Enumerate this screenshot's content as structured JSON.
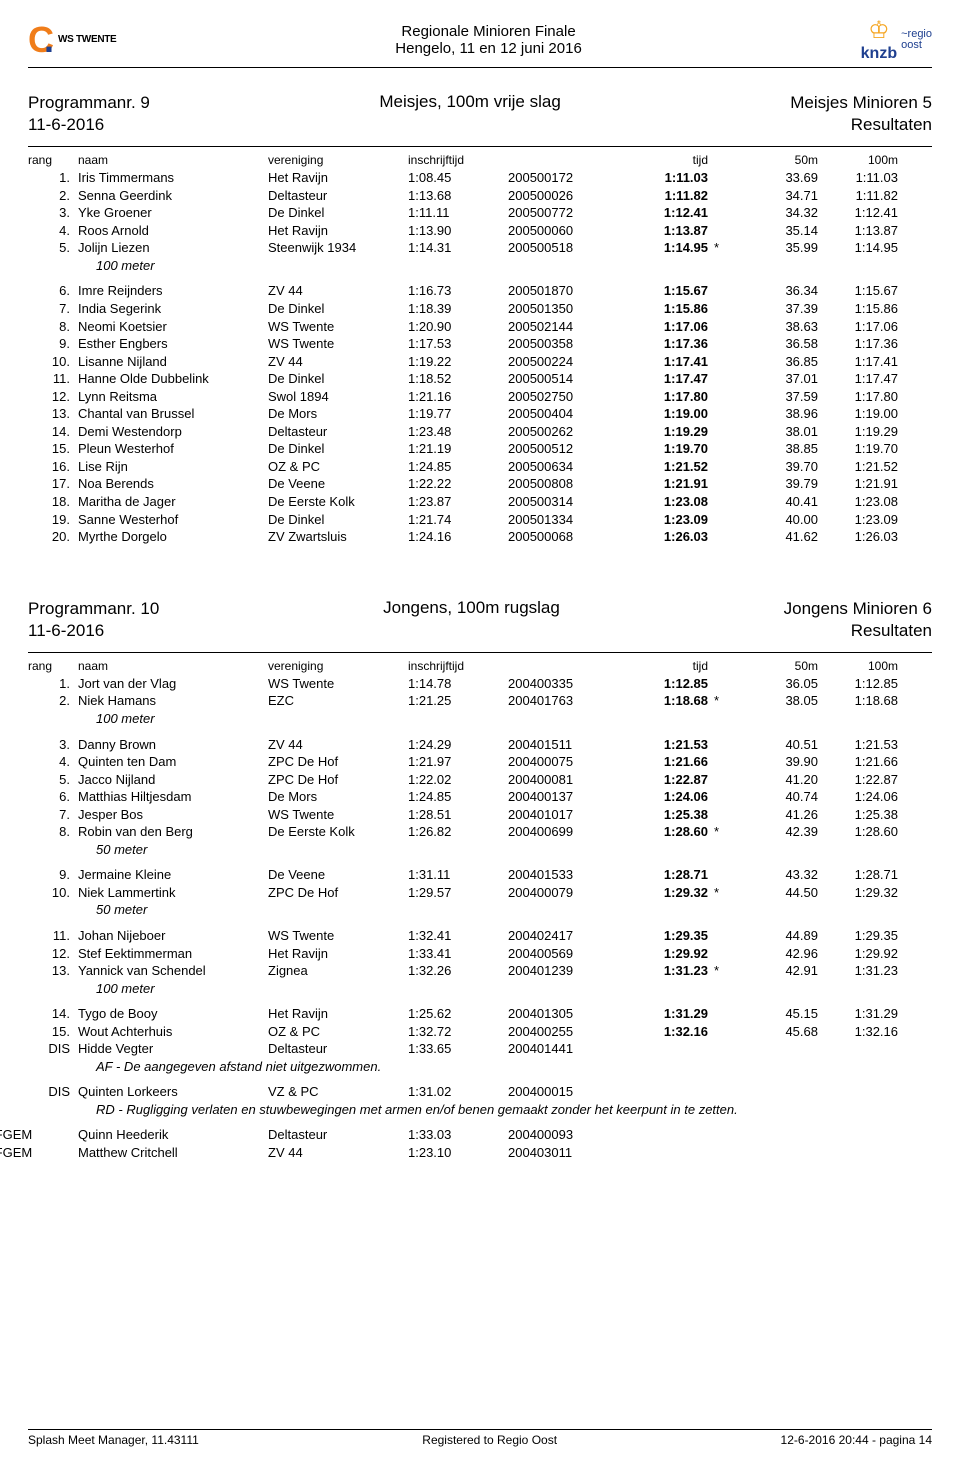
{
  "header": {
    "ws_logo_text": "WS TWENTE",
    "title_line1": "Regionale Minioren Finale",
    "title_line2": "Hengelo, 11 en 12 juni 2016",
    "knzb_text": "knzb",
    "regio_line1": "~regio",
    "regio_line2": "oost",
    "swoosh_color1": "#f07d1a",
    "swoosh_color2": "#1e3f8f",
    "knzb_color": "#1e3f8f",
    "lion_color": "#f5a623"
  },
  "program1": {
    "num_label": "Programmanr. 9",
    "date": "11-6-2016",
    "event": "Meisjes, 100m vrije slag",
    "category": "Meisjes Minioren 5",
    "subtitle": "Resultaten",
    "cols": {
      "rang": "rang",
      "naam": "naam",
      "vereniging": "vereniging",
      "inschrijftijd": "inschrijftijd",
      "id": "",
      "tijd": "tijd",
      "star": "",
      "m50": "50m",
      "m100": "100m"
    },
    "groups": [
      {
        "rows": [
          {
            "r": "1.",
            "n": "Iris Timmermans",
            "v": "Het Ravijn",
            "it": "1:08.45",
            "id": "200500172",
            "t": "1:11.03",
            "s": "",
            "m50": "33.69",
            "m100": "1:11.03"
          },
          {
            "r": "2.",
            "n": "Senna Geerdink",
            "v": "Deltasteur",
            "it": "1:13.68",
            "id": "200500026",
            "t": "1:11.82",
            "s": "",
            "m50": "34.71",
            "m100": "1:11.82"
          },
          {
            "r": "3.",
            "n": "Yke Groener",
            "v": "De Dinkel",
            "it": "1:11.11",
            "id": "200500772",
            "t": "1:12.41",
            "s": "",
            "m50": "34.32",
            "m100": "1:12.41"
          },
          {
            "r": "4.",
            "n": "Roos Arnold",
            "v": "Het Ravijn",
            "it": "1:13.90",
            "id": "200500060",
            "t": "1:13.87",
            "s": "",
            "m50": "35.14",
            "m100": "1:13.87"
          },
          {
            "r": "5.",
            "n": "Jolijn Liezen",
            "v": "Steenwijk 1934",
            "it": "1:14.31",
            "id": "200500518",
            "t": "1:14.95",
            "s": "*",
            "m50": "35.99",
            "m100": "1:14.95"
          }
        ],
        "note": "100 meter"
      },
      {
        "rows": [
          {
            "r": "6.",
            "n": "Imre Reijnders",
            "v": "ZV 44",
            "it": "1:16.73",
            "id": "200501870",
            "t": "1:15.67",
            "s": "",
            "m50": "36.34",
            "m100": "1:15.67"
          },
          {
            "r": "7.",
            "n": "India Segerink",
            "v": "De Dinkel",
            "it": "1:18.39",
            "id": "200501350",
            "t": "1:15.86",
            "s": "",
            "m50": "37.39",
            "m100": "1:15.86"
          },
          {
            "r": "8.",
            "n": "Neomi Koetsier",
            "v": "WS Twente",
            "it": "1:20.90",
            "id": "200502144",
            "t": "1:17.06",
            "s": "",
            "m50": "38.63",
            "m100": "1:17.06"
          },
          {
            "r": "9.",
            "n": "Esther Engbers",
            "v": "WS Twente",
            "it": "1:17.53",
            "id": "200500358",
            "t": "1:17.36",
            "s": "",
            "m50": "36.58",
            "m100": "1:17.36"
          },
          {
            "r": "10.",
            "n": "Lisanne Nijland",
            "v": "ZV 44",
            "it": "1:19.22",
            "id": "200500224",
            "t": "1:17.41",
            "s": "",
            "m50": "36.85",
            "m100": "1:17.41"
          },
          {
            "r": "11.",
            "n": "Hanne Olde Dubbelink",
            "v": "De Dinkel",
            "it": "1:18.52",
            "id": "200500514",
            "t": "1:17.47",
            "s": "",
            "m50": "37.01",
            "m100": "1:17.47"
          },
          {
            "r": "12.",
            "n": "Lynn Reitsma",
            "v": "Swol 1894",
            "it": "1:21.16",
            "id": "200502750",
            "t": "1:17.80",
            "s": "",
            "m50": "37.59",
            "m100": "1:17.80"
          },
          {
            "r": "13.",
            "n": "Chantal van Brussel",
            "v": "De Mors",
            "it": "1:19.77",
            "id": "200500404",
            "t": "1:19.00",
            "s": "",
            "m50": "38.96",
            "m100": "1:19.00"
          },
          {
            "r": "14.",
            "n": "Demi Westendorp",
            "v": "Deltasteur",
            "it": "1:23.48",
            "id": "200500262",
            "t": "1:19.29",
            "s": "",
            "m50": "38.01",
            "m100": "1:19.29"
          },
          {
            "r": "15.",
            "n": "Pleun Westerhof",
            "v": "De Dinkel",
            "it": "1:21.19",
            "id": "200500512",
            "t": "1:19.70",
            "s": "",
            "m50": "38.85",
            "m100": "1:19.70"
          },
          {
            "r": "16.",
            "n": "Lise Rijn",
            "v": "OZ & PC",
            "it": "1:24.85",
            "id": "200500634",
            "t": "1:21.52",
            "s": "",
            "m50": "39.70",
            "m100": "1:21.52"
          },
          {
            "r": "17.",
            "n": "Noa Berends",
            "v": "De Veene",
            "it": "1:22.22",
            "id": "200500808",
            "t": "1:21.91",
            "s": "",
            "m50": "39.79",
            "m100": "1:21.91"
          },
          {
            "r": "18.",
            "n": "Maritha de Jager",
            "v": "De Eerste Kolk",
            "it": "1:23.87",
            "id": "200500314",
            "t": "1:23.08",
            "s": "",
            "m50": "40.41",
            "m100": "1:23.08"
          },
          {
            "r": "19.",
            "n": "Sanne Westerhof",
            "v": "De Dinkel",
            "it": "1:21.74",
            "id": "200501334",
            "t": "1:23.09",
            "s": "",
            "m50": "40.00",
            "m100": "1:23.09"
          },
          {
            "r": "20.",
            "n": "Myrthe Dorgelo",
            "v": "ZV Zwartsluis",
            "it": "1:24.16",
            "id": "200500068",
            "t": "1:26.03",
            "s": "",
            "m50": "41.62",
            "m100": "1:26.03"
          }
        ]
      }
    ]
  },
  "program2": {
    "num_label": "Programmanr. 10",
    "date": "11-6-2016",
    "event": "Jongens, 100m rugslag",
    "category": "Jongens Minioren 6",
    "subtitle": "Resultaten",
    "cols": {
      "rang": "rang",
      "naam": "naam",
      "vereniging": "vereniging",
      "inschrijftijd": "inschrijftijd",
      "id": "",
      "tijd": "tijd",
      "star": "",
      "m50": "50m",
      "m100": "100m"
    },
    "groups": [
      {
        "rows": [
          {
            "r": "1.",
            "n": "Jort van der Vlag",
            "v": "WS Twente",
            "it": "1:14.78",
            "id": "200400335",
            "t": "1:12.85",
            "s": "",
            "m50": "36.05",
            "m100": "1:12.85"
          },
          {
            "r": "2.",
            "n": "Niek Hamans",
            "v": "EZC",
            "it": "1:21.25",
            "id": "200401763",
            "t": "1:18.68",
            "s": "*",
            "m50": "38.05",
            "m100": "1:18.68"
          }
        ],
        "note": "100 meter"
      },
      {
        "rows": [
          {
            "r": "3.",
            "n": "Danny Brown",
            "v": "ZV 44",
            "it": "1:24.29",
            "id": "200401511",
            "t": "1:21.53",
            "s": "",
            "m50": "40.51",
            "m100": "1:21.53"
          },
          {
            "r": "4.",
            "n": "Quinten ten Dam",
            "v": "ZPC De Hof",
            "it": "1:21.97",
            "id": "200400075",
            "t": "1:21.66",
            "s": "",
            "m50": "39.90",
            "m100": "1:21.66"
          },
          {
            "r": "5.",
            "n": "Jacco Nijland",
            "v": "ZPC De Hof",
            "it": "1:22.02",
            "id": "200400081",
            "t": "1:22.87",
            "s": "",
            "m50": "41.20",
            "m100": "1:22.87"
          },
          {
            "r": "6.",
            "n": "Matthias Hiltjesdam",
            "v": "De Mors",
            "it": "1:24.85",
            "id": "200400137",
            "t": "1:24.06",
            "s": "",
            "m50": "40.74",
            "m100": "1:24.06"
          },
          {
            "r": "7.",
            "n": "Jesper Bos",
            "v": "WS Twente",
            "it": "1:28.51",
            "id": "200401017",
            "t": "1:25.38",
            "s": "",
            "m50": "41.26",
            "m100": "1:25.38"
          },
          {
            "r": "8.",
            "n": "Robin van den Berg",
            "v": "De Eerste Kolk",
            "it": "1:26.82",
            "id": "200400699",
            "t": "1:28.60",
            "s": "*",
            "m50": "42.39",
            "m100": "1:28.60"
          }
        ],
        "note": "50 meter"
      },
      {
        "rows": [
          {
            "r": "9.",
            "n": "Jermaine Kleine",
            "v": "De Veene",
            "it": "1:31.11",
            "id": "200401533",
            "t": "1:28.71",
            "s": "",
            "m50": "43.32",
            "m100": "1:28.71"
          },
          {
            "r": "10.",
            "n": "Niek Lammertink",
            "v": "ZPC De Hof",
            "it": "1:29.57",
            "id": "200400079",
            "t": "1:29.32",
            "s": "*",
            "m50": "44.50",
            "m100": "1:29.32"
          }
        ],
        "note": "50 meter"
      },
      {
        "rows": [
          {
            "r": "11.",
            "n": "Johan Nijeboer",
            "v": "WS Twente",
            "it": "1:32.41",
            "id": "200402417",
            "t": "1:29.35",
            "s": "",
            "m50": "44.89",
            "m100": "1:29.35"
          },
          {
            "r": "12.",
            "n": "Stef Eektimmerman",
            "v": "Het Ravijn",
            "it": "1:33.41",
            "id": "200400569",
            "t": "1:29.92",
            "s": "",
            "m50": "42.96",
            "m100": "1:29.92"
          },
          {
            "r": "13.",
            "n": "Yannick van Schendel",
            "v": "Zignea",
            "it": "1:32.26",
            "id": "200401239",
            "t": "1:31.23",
            "s": "*",
            "m50": "42.91",
            "m100": "1:31.23"
          }
        ],
        "note": "100 meter"
      },
      {
        "rows": [
          {
            "r": "14.",
            "n": "Tygo de Booy",
            "v": "Het Ravijn",
            "it": "1:25.62",
            "id": "200401305",
            "t": "1:31.29",
            "s": "",
            "m50": "45.15",
            "m100": "1:31.29"
          },
          {
            "r": "15.",
            "n": "Wout Achterhuis",
            "v": "OZ & PC",
            "it": "1:32.72",
            "id": "200400255",
            "t": "1:32.16",
            "s": "",
            "m50": "45.68",
            "m100": "1:32.16"
          },
          {
            "r": "DIS",
            "n": "Hidde Vegter",
            "v": "Deltasteur",
            "it": "1:33.65",
            "id": "200401441",
            "t": "",
            "s": "",
            "m50": "",
            "m100": ""
          }
        ],
        "note": "AF - De aangegeven afstand niet uitgezwommen."
      },
      {
        "rows": [
          {
            "r": "DIS",
            "n": "Quinten Lorkeers",
            "v": "VZ & PC",
            "it": "1:31.02",
            "id": "200400015",
            "t": "",
            "s": "",
            "m50": "",
            "m100": ""
          }
        ],
        "note": "RD - Rugligging verlaten en stuwbewegingen met armen en/of benen gemaakt zonder het keerpunt in te zetten."
      },
      {
        "rows": [
          {
            "r": "AFGEM",
            "n": "Quinn Heederik",
            "v": "Deltasteur",
            "it": "1:33.03",
            "id": "200400093",
            "t": "",
            "s": "",
            "m50": "",
            "m100": "",
            "outdent": true
          },
          {
            "r": "AFGEM",
            "n": "Matthew Critchell",
            "v": "ZV 44",
            "it": "1:23.10",
            "id": "200403011",
            "t": "",
            "s": "",
            "m50": "",
            "m100": "",
            "outdent": true
          }
        ]
      }
    ]
  },
  "footer": {
    "left": "Splash Meet Manager, 11.43111",
    "center": "Registered to Regio Oost",
    "right": "12-6-2016 20:44 - pagina 14"
  }
}
